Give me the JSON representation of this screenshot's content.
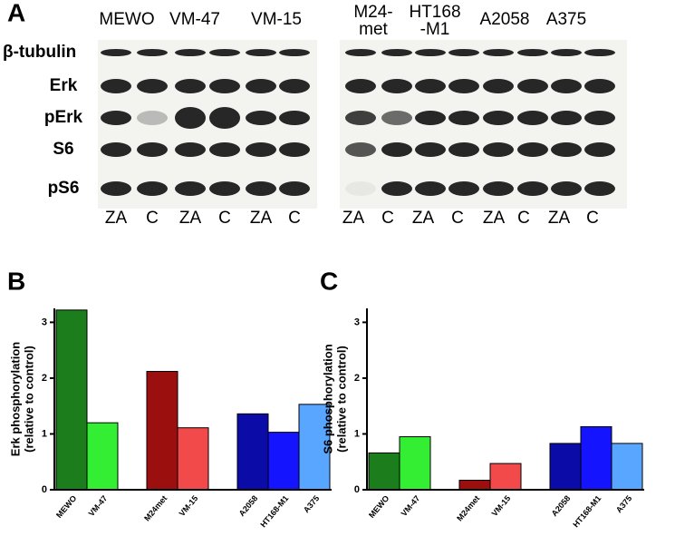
{
  "blot": {
    "panel_label": "A",
    "left_lanes": [
      [
        "MEWO"
      ],
      [
        "VM-47"
      ],
      [
        "VM-15"
      ]
    ],
    "right_lanes": [
      [
        "M24-",
        "met"
      ],
      [
        "HT168",
        "-M1"
      ],
      [
        "A2058"
      ],
      [
        "A375"
      ]
    ],
    "rows": [
      "β-tubulin",
      "Erk",
      "pErk",
      "S6",
      "pS6"
    ],
    "left_conditions": [
      "ZA",
      "C",
      "ZA",
      "C",
      "ZA",
      "C"
    ],
    "right_conditions": [
      "ZA",
      "C",
      "ZA",
      "C",
      "ZA",
      "C",
      "ZA",
      "C"
    ]
  },
  "chart_data": [
    {
      "type": "bar",
      "panel": "B",
      "ylabel": [
        "Erk phosphorylation",
        "(relative to control)"
      ],
      "categories": [
        "MEWO",
        "VM-47",
        "M24met",
        "VM-15",
        "A2058",
        "HT168-M1",
        "A375"
      ],
      "values": [
        3.22,
        1.2,
        2.12,
        1.11,
        1.36,
        1.03,
        1.53
      ],
      "colors": [
        "#1b7d1b",
        "#33ee33",
        "#9c0f0f",
        "#f24a4a",
        "#0b0ba8",
        "#1414ff",
        "#58a6ff"
      ],
      "ylim": [
        0,
        3.25
      ],
      "yticks": [
        0,
        1,
        2,
        3
      ]
    },
    {
      "type": "bar",
      "panel": "C",
      "ylabel": [
        "S6 phosphorylation",
        "(relative to control)"
      ],
      "categories": [
        "MEWO",
        "VM-47",
        "M24met",
        "VM-15",
        "A2058",
        "HT168-M1",
        "A375"
      ],
      "values": [
        0.66,
        0.95,
        0.17,
        0.47,
        0.83,
        1.13,
        0.83
      ],
      "colors": [
        "#1b7d1b",
        "#33ee33",
        "#9c0f0f",
        "#f24a4a",
        "#0b0ba8",
        "#1414ff",
        "#58a6ff"
      ],
      "ylim": [
        0,
        3.25
      ],
      "yticks": [
        0,
        1,
        2,
        3
      ]
    }
  ]
}
